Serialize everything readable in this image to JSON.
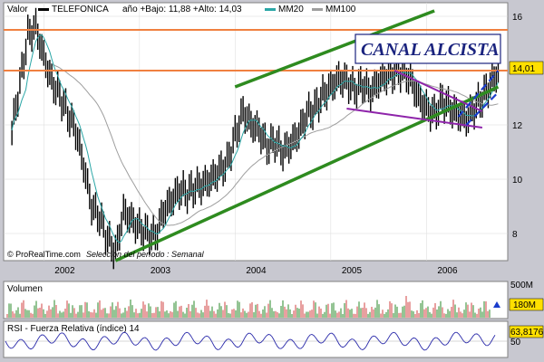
{
  "chart_data": [
    {
      "type": "candlestick",
      "legend": {
        "valor_label": "Valor",
        "ticker": "TELEFONICA",
        "range_text": "año +Bajo: 11,88 +Alto: 14,03",
        "mm20_label": "MM20",
        "mm100_label": "MM100"
      },
      "annotation": "CANAL ALCISTA",
      "last_price_label": "14,01",
      "y_ticks": [
        "16",
        "14",
        "12",
        "10",
        "8"
      ],
      "x_ticks": [
        "2002",
        "2003",
        "2004",
        "2005",
        "2006"
      ],
      "ylim": [
        7,
        16.5
      ],
      "source_text": "© ProRealTime.com",
      "period_text": "Selección del período : Semanal",
      "horizontal_lines": [
        15.5,
        14.0
      ],
      "price_series": [
        [
          "2001-09",
          11.8
        ],
        [
          "2001-10",
          13.5
        ],
        [
          "2001-11",
          15.3
        ],
        [
          "2001-12",
          15.6
        ],
        [
          "2002-01",
          14.5
        ],
        [
          "2002-02",
          13.6
        ],
        [
          "2002-03",
          13.1
        ],
        [
          "2002-04",
          12.4
        ],
        [
          "2002-05",
          11.8
        ],
        [
          "2002-06",
          10.5
        ],
        [
          "2002-07",
          9.0
        ],
        [
          "2002-08",
          8.6
        ],
        [
          "2002-09",
          7.8
        ],
        [
          "2002-10",
          7.3
        ],
        [
          "2002-11",
          8.8
        ],
        [
          "2002-12",
          8.5
        ],
        [
          "2003-01",
          8.2
        ],
        [
          "2003-02",
          8.0
        ],
        [
          "2003-03",
          7.9
        ],
        [
          "2003-04",
          8.8
        ],
        [
          "2003-05",
          9.2
        ],
        [
          "2003-06",
          9.6
        ],
        [
          "2003-07",
          9.5
        ],
        [
          "2003-08",
          9.7
        ],
        [
          "2003-09",
          9.8
        ],
        [
          "2003-10",
          10.0
        ],
        [
          "2003-11",
          10.3
        ],
        [
          "2003-12",
          10.6
        ],
        [
          "2004-01",
          11.6
        ],
        [
          "2004-02",
          12.5
        ],
        [
          "2004-03",
          12.0
        ],
        [
          "2004-04",
          11.8
        ],
        [
          "2004-05",
          11.2
        ],
        [
          "2004-06",
          11.4
        ],
        [
          "2004-07",
          11.0
        ],
        [
          "2004-08",
          11.3
        ],
        [
          "2004-09",
          11.7
        ],
        [
          "2004-10",
          12.4
        ],
        [
          "2004-11",
          12.6
        ],
        [
          "2004-12",
          13.1
        ],
        [
          "2005-01",
          13.4
        ],
        [
          "2005-02",
          13.7
        ],
        [
          "2005-03",
          13.6
        ],
        [
          "2005-04",
          13.3
        ],
        [
          "2005-05",
          13.5
        ],
        [
          "2005-06",
          13.2
        ],
        [
          "2005-07",
          13.6
        ],
        [
          "2005-08",
          13.8
        ],
        [
          "2005-09",
          13.9
        ],
        [
          "2005-10",
          14.0
        ],
        [
          "2005-11",
          13.7
        ],
        [
          "2005-12",
          13.0
        ],
        [
          "2006-01",
          12.6
        ],
        [
          "2006-02",
          12.4
        ],
        [
          "2006-03",
          12.9
        ],
        [
          "2006-04",
          12.6
        ],
        [
          "2006-05",
          12.4
        ],
        [
          "2006-06",
          12.2
        ],
        [
          "2006-07",
          12.6
        ],
        [
          "2006-08",
          13.0
        ],
        [
          "2006-09",
          13.5
        ],
        [
          "2006-10",
          14.0
        ]
      ],
      "lines": {
        "channel_upper": [
          [
            "2004-01",
            13.4
          ],
          [
            "2006-02",
            16.2
          ]
        ],
        "channel_lower": [
          [
            "2002-10",
            7.0
          ],
          [
            "2006-10",
            13.4
          ]
        ],
        "wedge_upper": [
          [
            "2005-09",
            14.0
          ],
          [
            "2006-08",
            12.5
          ]
        ],
        "wedge_lower": [
          [
            "2005-03",
            12.6
          ],
          [
            "2006-08",
            11.9
          ]
        ],
        "dashed_upper": [
          [
            "2006-05",
            12.3
          ],
          [
            "2006-10",
            14.0
          ]
        ],
        "dashed_lower": [
          [
            "2006-06",
            12.0
          ],
          [
            "2006-10",
            13.2
          ]
        ]
      }
    },
    {
      "type": "bar",
      "title": "Volumen",
      "y_ticks": [
        "500M"
      ],
      "last_value_label": "180M"
    },
    {
      "type": "line",
      "title": "RSI - Fuerza Relativa (índice) 14",
      "y_ticks": [
        "50"
      ],
      "last_value_label": "63,8176"
    }
  ],
  "colors": {
    "background": "#c8c8d0",
    "panel": "#ffffff",
    "price": "#000000",
    "mm20": "#2aa6a6",
    "mm100": "#9e9e9e",
    "hline": "#f08040",
    "channel": "#2e8b1f",
    "wedge": "#8e24aa",
    "dashed": "#1a3ccc",
    "annotation": "#1a237e",
    "rsi": "#2a2aaa"
  }
}
